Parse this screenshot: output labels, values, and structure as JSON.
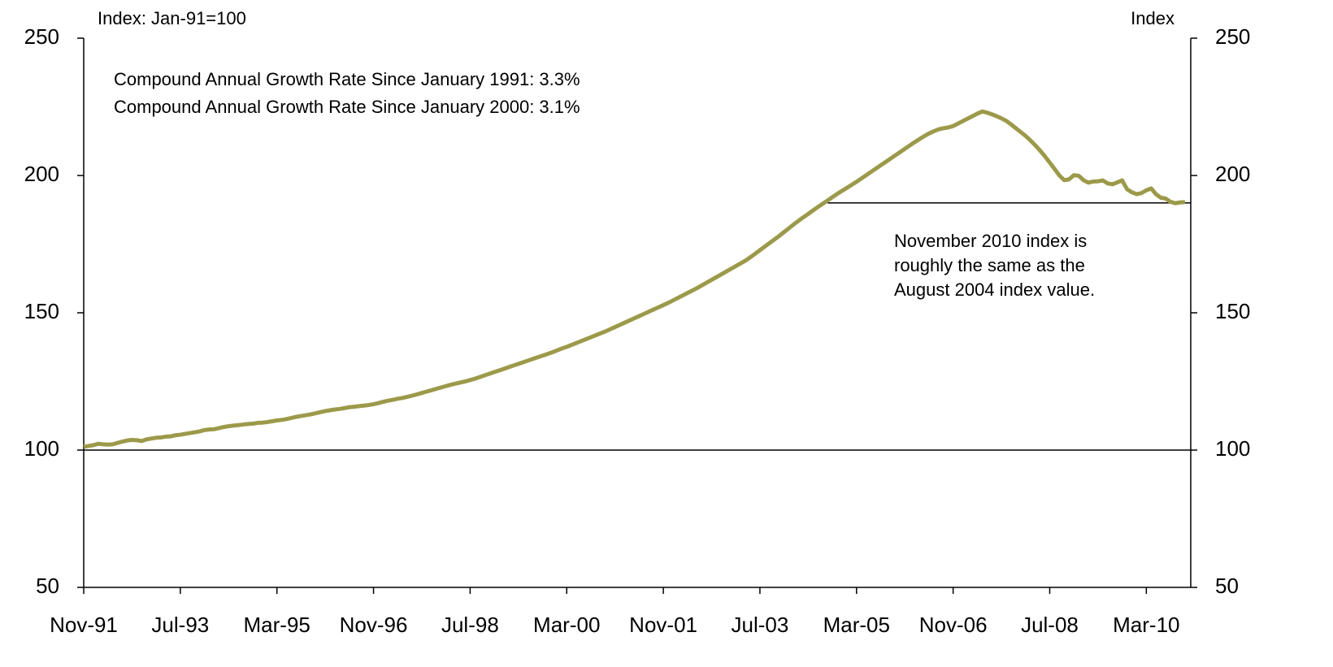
{
  "chart_data": {
    "type": "line",
    "y_axis_label": "Index: Jan-91=100",
    "y2_axis_label": "Index",
    "annotations": [
      "Compound Annual Growth Rate Since January 1991: 3.3%",
      "Compound Annual Growth Rate Since January 2000: 3.1%"
    ],
    "note": [
      "November 2010 index is",
      "roughly the same as the",
      "August 2004 index value."
    ],
    "color": "#9c9a4a",
    "ylim": [
      50,
      250
    ],
    "yticks": [
      50,
      100,
      150,
      200,
      250
    ],
    "y2lim": [
      50,
      250
    ],
    "y2ticks": [
      50,
      100,
      150,
      200,
      250
    ],
    "reference_lines": [
      {
        "value": 100
      },
      {
        "value": 190
      }
    ],
    "categories": [
      "Nov-91",
      null,
      null,
      null,
      null,
      null,
      null,
      null,
      null,
      null,
      null,
      null,
      null,
      null,
      null,
      null,
      null,
      null,
      null,
      null,
      "Jul-93",
      null,
      null,
      null,
      null,
      null,
      null,
      null,
      null,
      null,
      null,
      null,
      null,
      null,
      null,
      null,
      null,
      null,
      null,
      null,
      "Mar-95",
      null,
      null,
      null,
      null,
      null,
      null,
      null,
      null,
      null,
      null,
      null,
      null,
      null,
      null,
      null,
      null,
      null,
      null,
      null,
      "Nov-96",
      null,
      null,
      null,
      null,
      null,
      null,
      null,
      null,
      null,
      null,
      null,
      null,
      null,
      null,
      null,
      null,
      null,
      null,
      null,
      "Jul-98",
      null,
      null,
      null,
      null,
      null,
      null,
      null,
      null,
      null,
      null,
      null,
      null,
      null,
      null,
      null,
      null,
      null,
      null,
      null,
      "Mar-00",
      null,
      null,
      null,
      null,
      null,
      null,
      null,
      null,
      null,
      null,
      null,
      null,
      null,
      null,
      null,
      null,
      null,
      null,
      null,
      "Nov-01",
      null,
      null,
      null,
      null,
      null,
      null,
      null,
      null,
      null,
      null,
      null,
      null,
      null,
      null,
      null,
      null,
      null,
      null,
      null,
      "Jul-03",
      null,
      null,
      null,
      null,
      null,
      null,
      null,
      null,
      null,
      null,
      null,
      null,
      null,
      null,
      null,
      null,
      null,
      null,
      null,
      "Mar-05",
      null,
      null,
      null,
      null,
      null,
      null,
      null,
      null,
      null,
      null,
      null,
      null,
      null,
      null,
      null,
      null,
      null,
      null,
      null,
      "Nov-06",
      null,
      null,
      null,
      null,
      null,
      null,
      null,
      null,
      null,
      null,
      null,
      null,
      null,
      null,
      null,
      null,
      null,
      null,
      null,
      "Jul-08",
      null,
      null,
      null,
      null,
      null,
      null,
      null,
      null,
      null,
      null,
      null,
      null,
      null,
      null,
      null,
      null,
      null,
      null,
      null,
      "Mar-10",
      null,
      null,
      null,
      null,
      null,
      null,
      null,
      null
    ],
    "values": [
      101.2,
      101.5,
      101.8,
      102.3,
      102.1,
      102.0,
      102.1,
      102.6,
      103.1,
      103.5,
      103.7,
      103.6,
      103.3,
      103.9,
      104.2,
      104.5,
      104.6,
      104.9,
      105.0,
      105.4,
      105.6,
      105.9,
      106.2,
      106.5,
      106.8,
      107.3,
      107.5,
      107.6,
      108.0,
      108.4,
      108.7,
      108.9,
      109.1,
      109.3,
      109.5,
      109.6,
      109.9,
      110.0,
      110.2,
      110.5,
      110.8,
      111.0,
      111.3,
      111.7,
      112.1,
      112.4,
      112.7,
      113.0,
      113.4,
      113.8,
      114.2,
      114.5,
      114.8,
      115.0,
      115.3,
      115.6,
      115.8,
      116.0,
      116.2,
      116.4,
      116.7,
      117.1,
      117.6,
      118.0,
      118.3,
      118.7,
      119.0,
      119.4,
      119.8,
      120.3,
      120.8,
      121.3,
      121.8,
      122.3,
      122.8,
      123.3,
      123.8,
      124.2,
      124.6,
      125.0,
      125.5,
      126.0,
      126.6,
      127.2,
      127.8,
      128.4,
      129.0,
      129.6,
      130.2,
      130.8,
      131.4,
      132.0,
      132.6,
      133.2,
      133.8,
      134.4,
      135.0,
      135.6,
      136.3,
      137.0,
      137.6,
      138.3,
      139.0,
      139.7,
      140.4,
      141.1,
      141.8,
      142.5,
      143.2,
      144.0,
      144.8,
      145.6,
      146.4,
      147.2,
      148.0,
      148.8,
      149.6,
      150.4,
      151.2,
      152.0,
      152.8,
      153.6,
      154.5,
      155.4,
      156.3,
      157.2,
      158.1,
      159.0,
      160.0,
      161.0,
      162.0,
      163.0,
      164.0,
      165.0,
      166.0,
      167.0,
      168.0,
      169.0,
      170.2,
      171.5,
      172.8,
      174.1,
      175.4,
      176.7,
      178.0,
      179.4,
      180.8,
      182.2,
      183.5,
      184.8,
      186.0,
      187.3,
      188.5,
      189.7,
      190.9,
      192.1,
      193.3,
      194.4,
      195.5,
      196.6,
      197.7,
      198.9,
      200.1,
      201.3,
      202.5,
      203.7,
      204.9,
      206.1,
      207.3,
      208.5,
      209.7,
      210.9,
      212.1,
      213.2,
      214.3,
      215.3,
      216.1,
      216.8,
      217.2,
      217.5,
      218.0,
      218.9,
      219.8,
      220.7,
      221.6,
      222.5,
      223.3,
      222.9,
      222.3,
      221.6,
      220.8,
      219.9,
      218.6,
      217.2,
      215.8,
      214.4,
      212.8,
      211.0,
      209.1,
      207.0,
      204.7,
      202.4,
      200.0,
      198.3,
      198.6,
      200.1,
      199.9,
      198.3,
      197.4,
      197.8,
      197.9,
      198.2,
      197.1,
      196.8,
      197.5,
      198.2,
      195.0,
      193.9,
      193.2,
      193.6,
      194.6,
      195.3,
      193.2,
      191.9,
      191.6,
      190.4,
      189.9,
      190.2,
      190.3
    ]
  }
}
